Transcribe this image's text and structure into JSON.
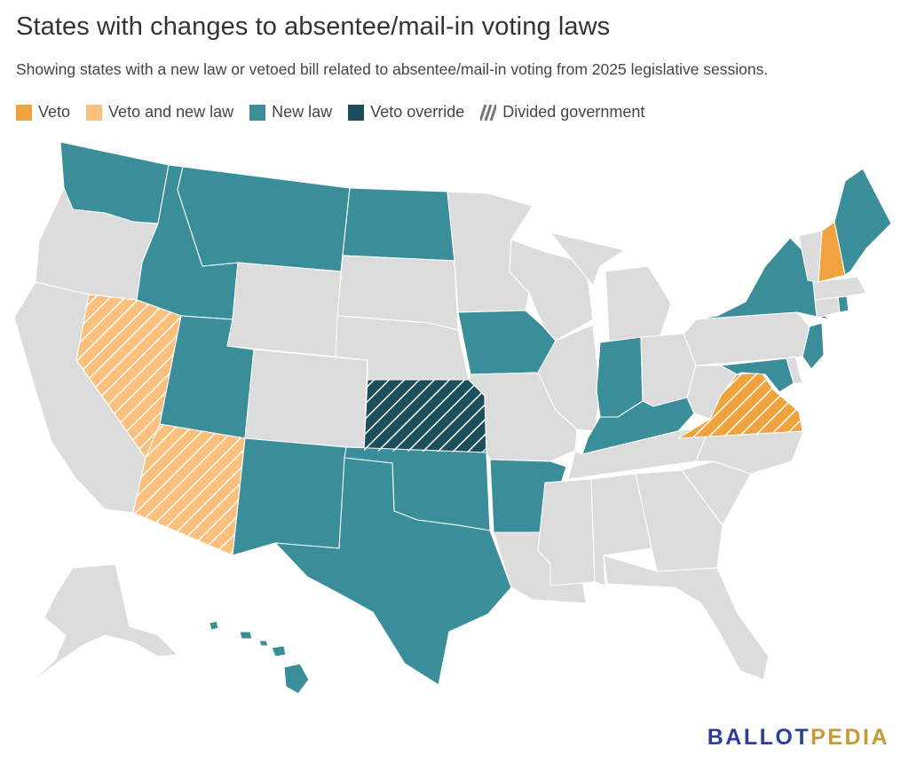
{
  "title": "States with changes to absentee/mail-in voting laws",
  "subtitle": "Showing states with a new law or vetoed bill related to absentee/mail-in voting from 2025 legislative sessions.",
  "legend": [
    {
      "label": "Veto",
      "color": "#f0a33c",
      "hatched": false
    },
    {
      "label": "Veto and new law",
      "color": "#fcc07c",
      "hatched": false
    },
    {
      "label": "New law",
      "color": "#3a8e9a",
      "hatched": false
    },
    {
      "label": "Veto override",
      "color": "#1b4f5b",
      "hatched": false
    },
    {
      "label": "Divided government",
      "color": "#777777",
      "hatched": true
    }
  ],
  "colors": {
    "no_change": "#dcdcdc",
    "veto": "#f0a33c",
    "veto_and_new_law": "#fcc07c",
    "new_law": "#3a8e9a",
    "veto_override": "#1b4f5b",
    "hatch": "#ffffff"
  },
  "states": {
    "veto": [
      "NH",
      "VA"
    ],
    "veto_and_new_law": [
      "NV",
      "AZ"
    ],
    "new_law": [
      "WA",
      "ID",
      "MT",
      "ND",
      "UT",
      "NM",
      "TX",
      "OK",
      "AR",
      "IA",
      "IN",
      "KY",
      "MD",
      "NY",
      "NJ",
      "RI",
      "ME",
      "HI"
    ],
    "veto_override": [
      "KS"
    ],
    "divided_government": [
      "NV",
      "AZ",
      "KS",
      "VA"
    ]
  },
  "logo": {
    "part1": "BALLOT",
    "part2": "PEDIA"
  }
}
